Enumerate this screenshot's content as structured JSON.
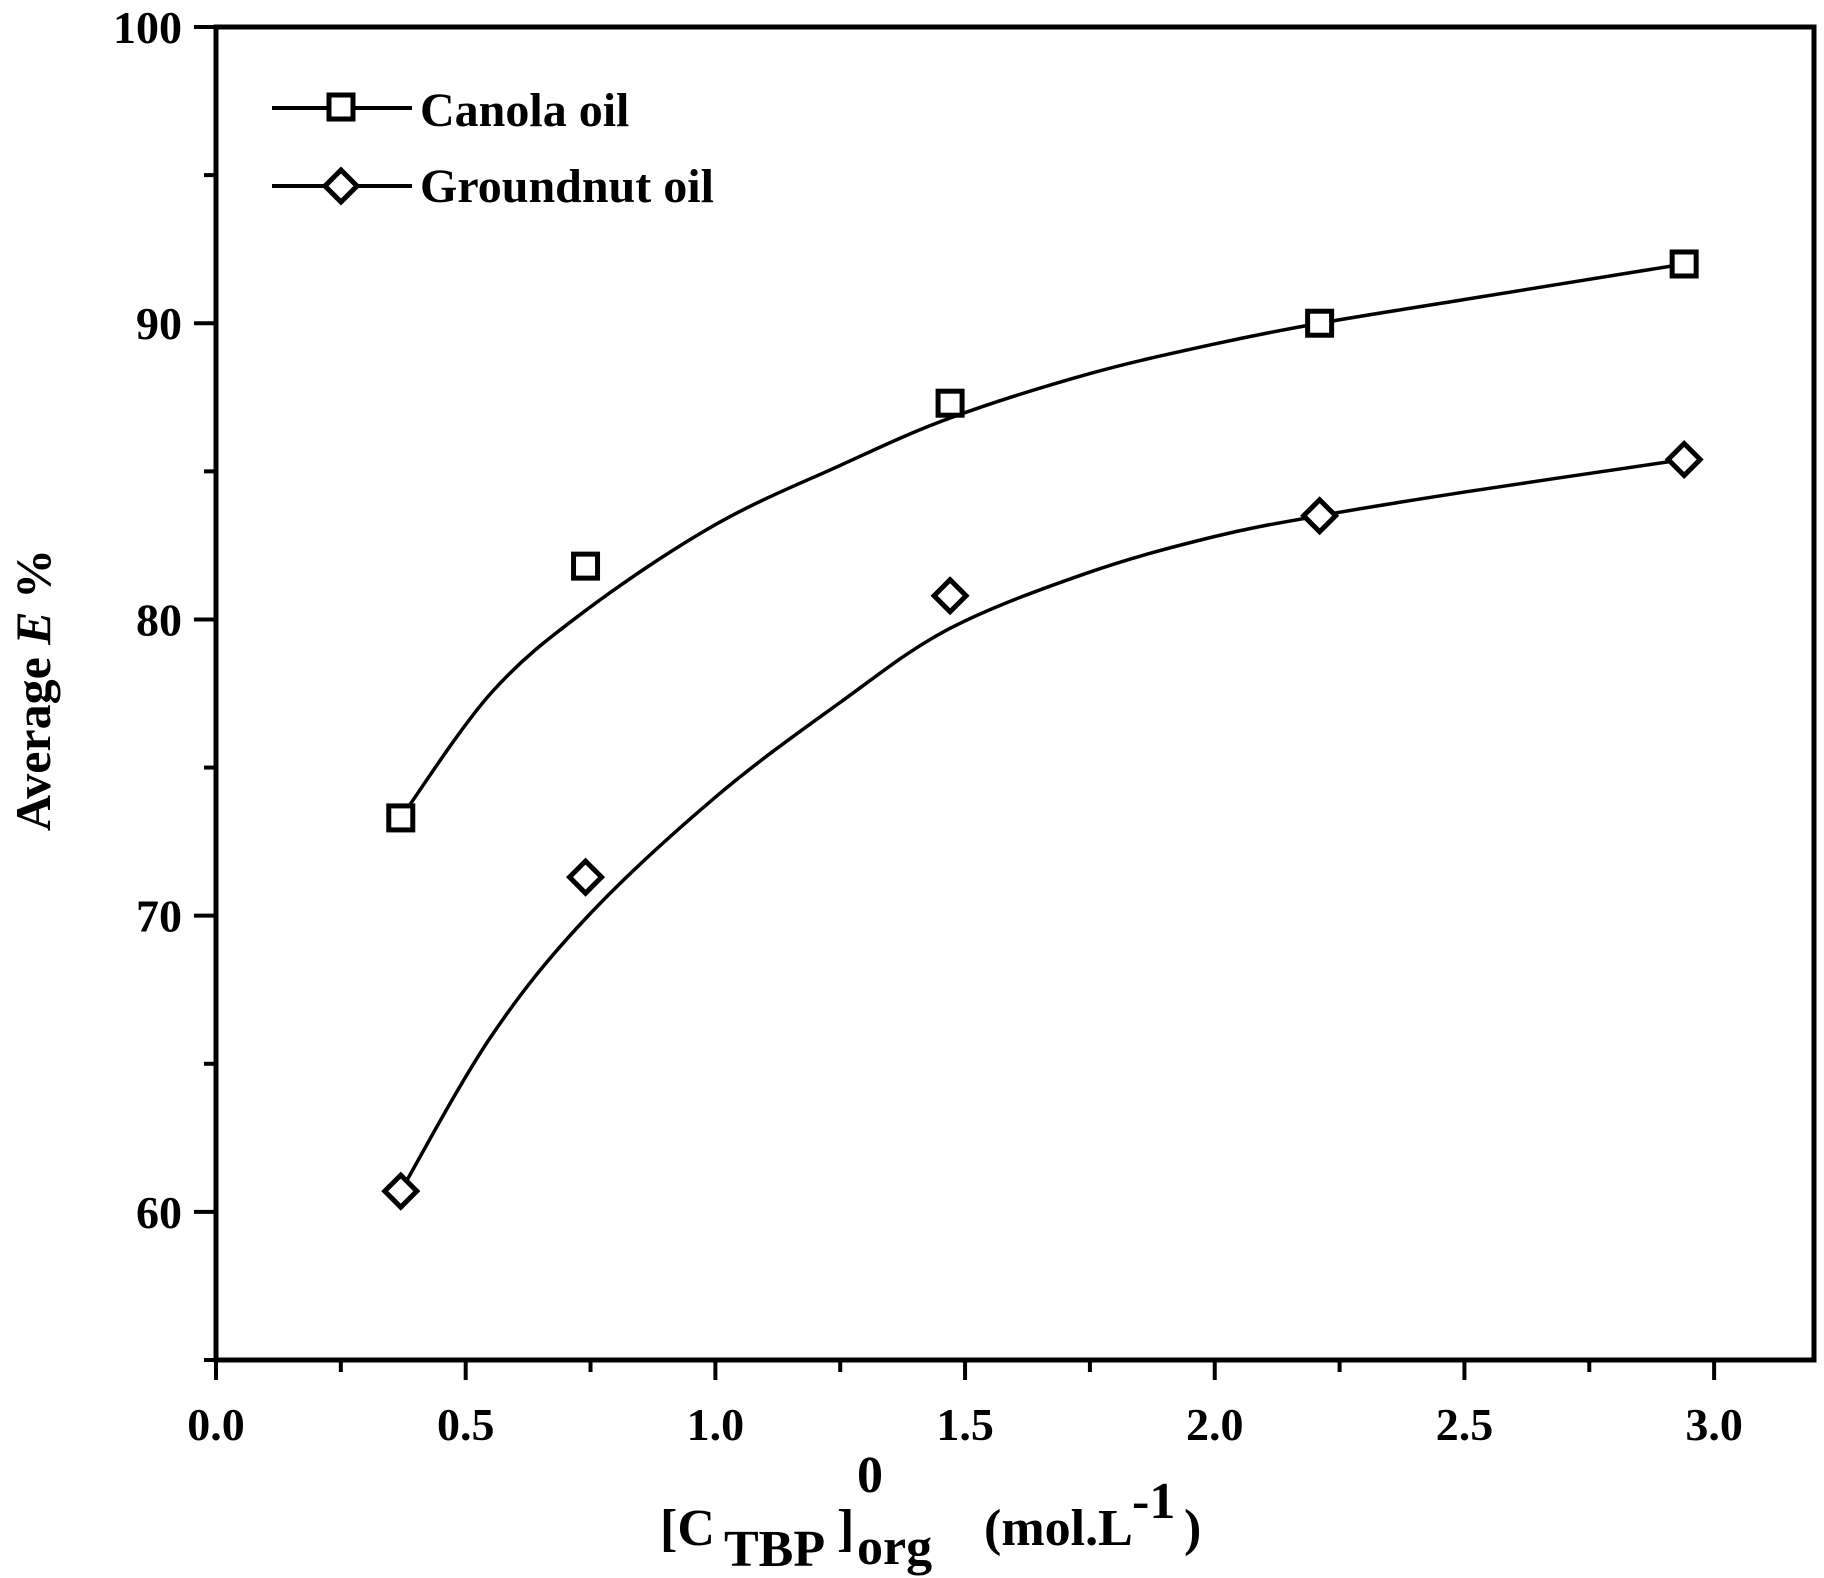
{
  "chart_data": {
    "type": "scatter",
    "title": "",
    "xlabel": {
      "bracket_open": "[C",
      "subscript": "TBP",
      "bracket_close": "]",
      "superscript_zero": "0",
      "subscript_org": "org",
      "unit_open": "(mol.L",
      "unit_exp": "-1",
      "unit_close": ")"
    },
    "ylabel": {
      "prefix": "Average ",
      "italic": "E",
      "suffix": " %"
    },
    "xlim": [
      0.0,
      3.2
    ],
    "ylim": [
      55,
      100
    ],
    "x_ticks": [
      "0.0",
      "0.5",
      "1.0",
      "1.5",
      "2.0",
      "2.5",
      "3.0"
    ],
    "x_tick_values": [
      0.0,
      0.5,
      1.0,
      1.5,
      2.0,
      2.5,
      3.0
    ],
    "y_ticks": [
      "60",
      "70",
      "80",
      "90",
      "100"
    ],
    "y_tick_values": [
      60,
      70,
      80,
      90,
      100
    ],
    "legend_position": "top-left",
    "series": [
      {
        "name": "Canola oil",
        "marker": "square",
        "x": [
          0.37,
          0.74,
          1.47,
          2.21,
          2.94
        ],
        "y": [
          73.3,
          81.8,
          87.3,
          90.0,
          92.0
        ],
        "fit_curve": {
          "x": [
            0.37,
            0.55,
            0.74,
            1.0,
            1.25,
            1.47,
            1.75,
            2.0,
            2.21,
            2.5,
            2.94
          ],
          "y": [
            73.3,
            77.5,
            80.3,
            83.2,
            85.2,
            86.8,
            88.3,
            89.3,
            90.0,
            90.8,
            92.0
          ]
        }
      },
      {
        "name": "Groundnut oil",
        "marker": "diamond",
        "x": [
          0.37,
          0.74,
          1.47,
          2.21,
          2.94
        ],
        "y": [
          60.7,
          71.3,
          80.8,
          83.5,
          85.4
        ],
        "fit_curve": {
          "x": [
            0.37,
            0.55,
            0.74,
            1.0,
            1.25,
            1.47,
            1.75,
            2.0,
            2.21,
            2.5,
            2.94
          ],
          "y": [
            60.7,
            65.9,
            69.9,
            74.0,
            77.2,
            79.7,
            81.6,
            82.8,
            83.5,
            84.3,
            85.4
          ]
        }
      }
    ]
  }
}
